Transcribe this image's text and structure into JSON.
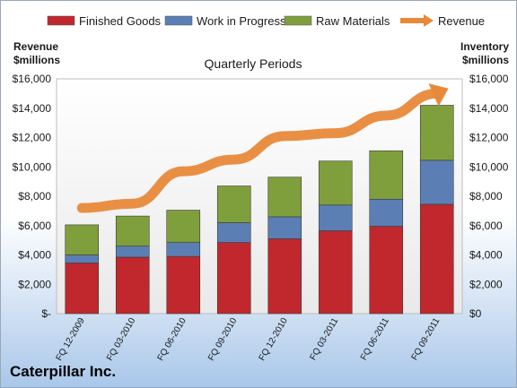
{
  "chart_data": {
    "type": "bar",
    "stacked": true,
    "period_label": "Quarterly Periods",
    "company": "Caterpillar Inc.",
    "categories": [
      "FQ 12-2009",
      "FQ 03-2010",
      "FQ 06-2010",
      "FQ 09-2010",
      "FQ 12-2010",
      "FQ 03-2011",
      "FQ 06-2011",
      "FQ 09-2011"
    ],
    "series": [
      {
        "name": "Finished Goods",
        "color": "#c0282e",
        "values": [
          3450,
          3850,
          3900,
          4850,
          5100,
          5650,
          5950,
          7450
        ]
      },
      {
        "name": "Work in Progress",
        "color": "#5b7fb5",
        "values": [
          550,
          750,
          950,
          1350,
          1500,
          1750,
          1850,
          3000
        ]
      },
      {
        "name": "Raw Materials",
        "color": "#7f9f3c",
        "values": [
          2050,
          2050,
          2200,
          2500,
          2700,
          3000,
          3300,
          3750
        ]
      }
    ],
    "line": {
      "name": "Revenue",
      "color": "#e8893a",
      "values": [
        7200,
        7500,
        9700,
        10500,
        12100,
        12300,
        13500,
        15000
      ]
    },
    "left_axis": {
      "title_line1": "Revenue",
      "title_line2": "$millions",
      "ylim": [
        0,
        16000
      ],
      "ticks": [
        "$16,000",
        "$14,000",
        "$12,000",
        "$10,000",
        "$8,000",
        "$6,000",
        "$4,000",
        "$2,000",
        "$-"
      ]
    },
    "right_axis": {
      "title_line1": "Inventory",
      "title_line2": "$millions",
      "ylim": [
        0,
        16000
      ],
      "ticks": [
        "$16,000",
        "$14,000",
        "$12,000",
        "$10,000",
        "$8,000",
        "$6,000",
        "$4,000",
        "$2,000",
        "$0"
      ]
    },
    "grid": false,
    "legend_position": "top"
  }
}
